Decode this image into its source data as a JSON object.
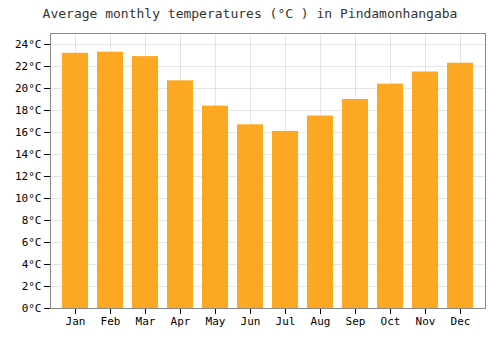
{
  "chart_data": {
    "type": "bar",
    "title": "Average monthly temperatures (°C ) in Pindamonhangaba",
    "categories": [
      "Jan",
      "Feb",
      "Mar",
      "Apr",
      "May",
      "Jun",
      "Jul",
      "Aug",
      "Sep",
      "Oct",
      "Nov",
      "Dec"
    ],
    "values": [
      23.2,
      23.3,
      22.9,
      20.7,
      18.4,
      16.7,
      16.1,
      17.5,
      19.0,
      20.4,
      21.5,
      22.3
    ],
    "color": "#FCA822",
    "ylim": [
      0,
      25
    ],
    "yticks": [
      {
        "value": 0,
        "label": "0°C"
      },
      {
        "value": 2,
        "label": "2°C"
      },
      {
        "value": 4,
        "label": "4°C"
      },
      {
        "value": 6,
        "label": "6°C"
      },
      {
        "value": 8,
        "label": "8°C"
      },
      {
        "value": 10,
        "label": "10°C"
      },
      {
        "value": 12,
        "label": "12°C"
      },
      {
        "value": 14,
        "label": "14°C"
      },
      {
        "value": 16,
        "label": "16°C"
      },
      {
        "value": 18,
        "label": "18°C"
      },
      {
        "value": 20,
        "label": "20°C"
      },
      {
        "value": 22,
        "label": "22°C"
      },
      {
        "value": 24,
        "label": "24°C"
      }
    ],
    "grid": true
  }
}
